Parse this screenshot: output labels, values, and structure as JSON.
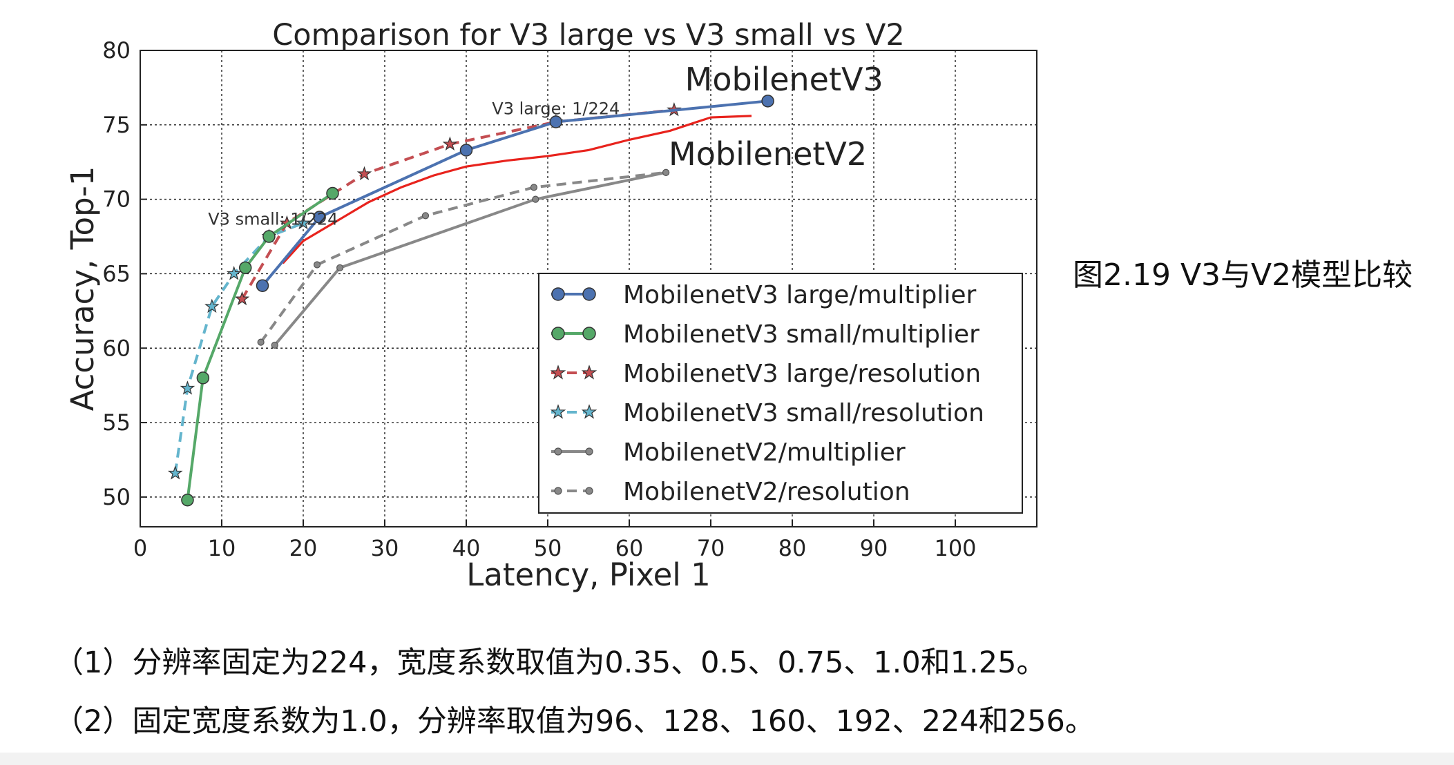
{
  "caption": "图2.19 V3与V2模型比较",
  "notes": [
    "（1）分辨率固定为224，宽度系数取值为0.35、0.5、0.75、1.0和1.25。",
    "（2）固定宽度系数为1.0，分辨率取值为96、128、160、192、224和256。"
  ],
  "chart_data": {
    "type": "line",
    "title": "Comparison for V3 large vs V3 small vs V2",
    "xlabel": "Latency, Pixel 1",
    "ylabel": "Accuracy, Top-1",
    "xlim": [
      0,
      110
    ],
    "ylim": [
      48,
      80
    ],
    "xticks": [
      "0",
      "10",
      "20",
      "30",
      "40",
      "50",
      "60",
      "70",
      "80",
      "90",
      "100"
    ],
    "yticks": [
      "50",
      "55",
      "60",
      "65",
      "70",
      "75",
      "80"
    ],
    "grid": true,
    "legend_position": "lower-right",
    "series": [
      {
        "name": "MobilenetV3 large/multiplier",
        "color": "#4c72b0",
        "style": "solid",
        "marker": "circle",
        "x": [
          15,
          22,
          40,
          51,
          77
        ],
        "y": [
          64.2,
          68.8,
          73.3,
          75.2,
          76.6
        ]
      },
      {
        "name": "MobilenetV3 small/multiplier",
        "color": "#55a868",
        "style": "solid",
        "marker": "circle",
        "x": [
          5.8,
          7.7,
          12.9,
          15.8,
          23.6
        ],
        "y": [
          49.8,
          58.0,
          65.4,
          67.5,
          70.4
        ]
      },
      {
        "name": "MobilenetV3 large/resolution",
        "color": "#c44e52",
        "style": "dashed",
        "marker": "star",
        "x": [
          12.5,
          18,
          27.5,
          38,
          51,
          65.5
        ],
        "y": [
          63.3,
          68.4,
          71.7,
          73.7,
          75.2,
          76.0
        ]
      },
      {
        "name": "MobilenetV3 small/resolution",
        "color": "#64b5cd",
        "style": "dashed",
        "marker": "star",
        "x": [
          4.3,
          5.8,
          8.8,
          11.5,
          15.8,
          20
        ],
        "y": [
          51.6,
          57.3,
          62.8,
          65.0,
          67.5,
          68.4
        ]
      },
      {
        "name": "MobilenetV2/multiplier",
        "color": "#888888",
        "style": "solid",
        "marker": "small-circle",
        "x": [
          16.5,
          24.5,
          48.5,
          64.5
        ],
        "y": [
          60.2,
          65.4,
          70.0,
          71.8
        ]
      },
      {
        "name": "MobilenetV2/resolution",
        "color": "#888888",
        "style": "dashed",
        "marker": "small-circle",
        "x": [
          14.8,
          21.7,
          35,
          48.3,
          64.5
        ],
        "y": [
          60.4,
          65.6,
          68.9,
          70.8,
          71.8
        ]
      }
    ],
    "extra_line": {
      "color": "#e8231d",
      "x": [
        17.5,
        20,
        24,
        28,
        32,
        36,
        40,
        45,
        50,
        55,
        60,
        65,
        70,
        75
      ],
      "y": [
        65.7,
        67.2,
        68.5,
        69.8,
        70.8,
        71.6,
        72.2,
        72.6,
        72.9,
        73.3,
        74.0,
        74.6,
        75.5,
        75.6
      ]
    },
    "annotations": [
      {
        "text": "MobilenetV3",
        "x": 79,
        "y": 77.3,
        "size": "large"
      },
      {
        "text": "MobilenetV2",
        "x": 77,
        "y": 72.3,
        "size": "large"
      },
      {
        "text": "V3 large: 1/224",
        "x": 51,
        "y": 75.7,
        "size": "small"
      },
      {
        "text": "V3 small: 1/224",
        "x": 16.3,
        "y": 68.3,
        "size": "small"
      }
    ]
  }
}
